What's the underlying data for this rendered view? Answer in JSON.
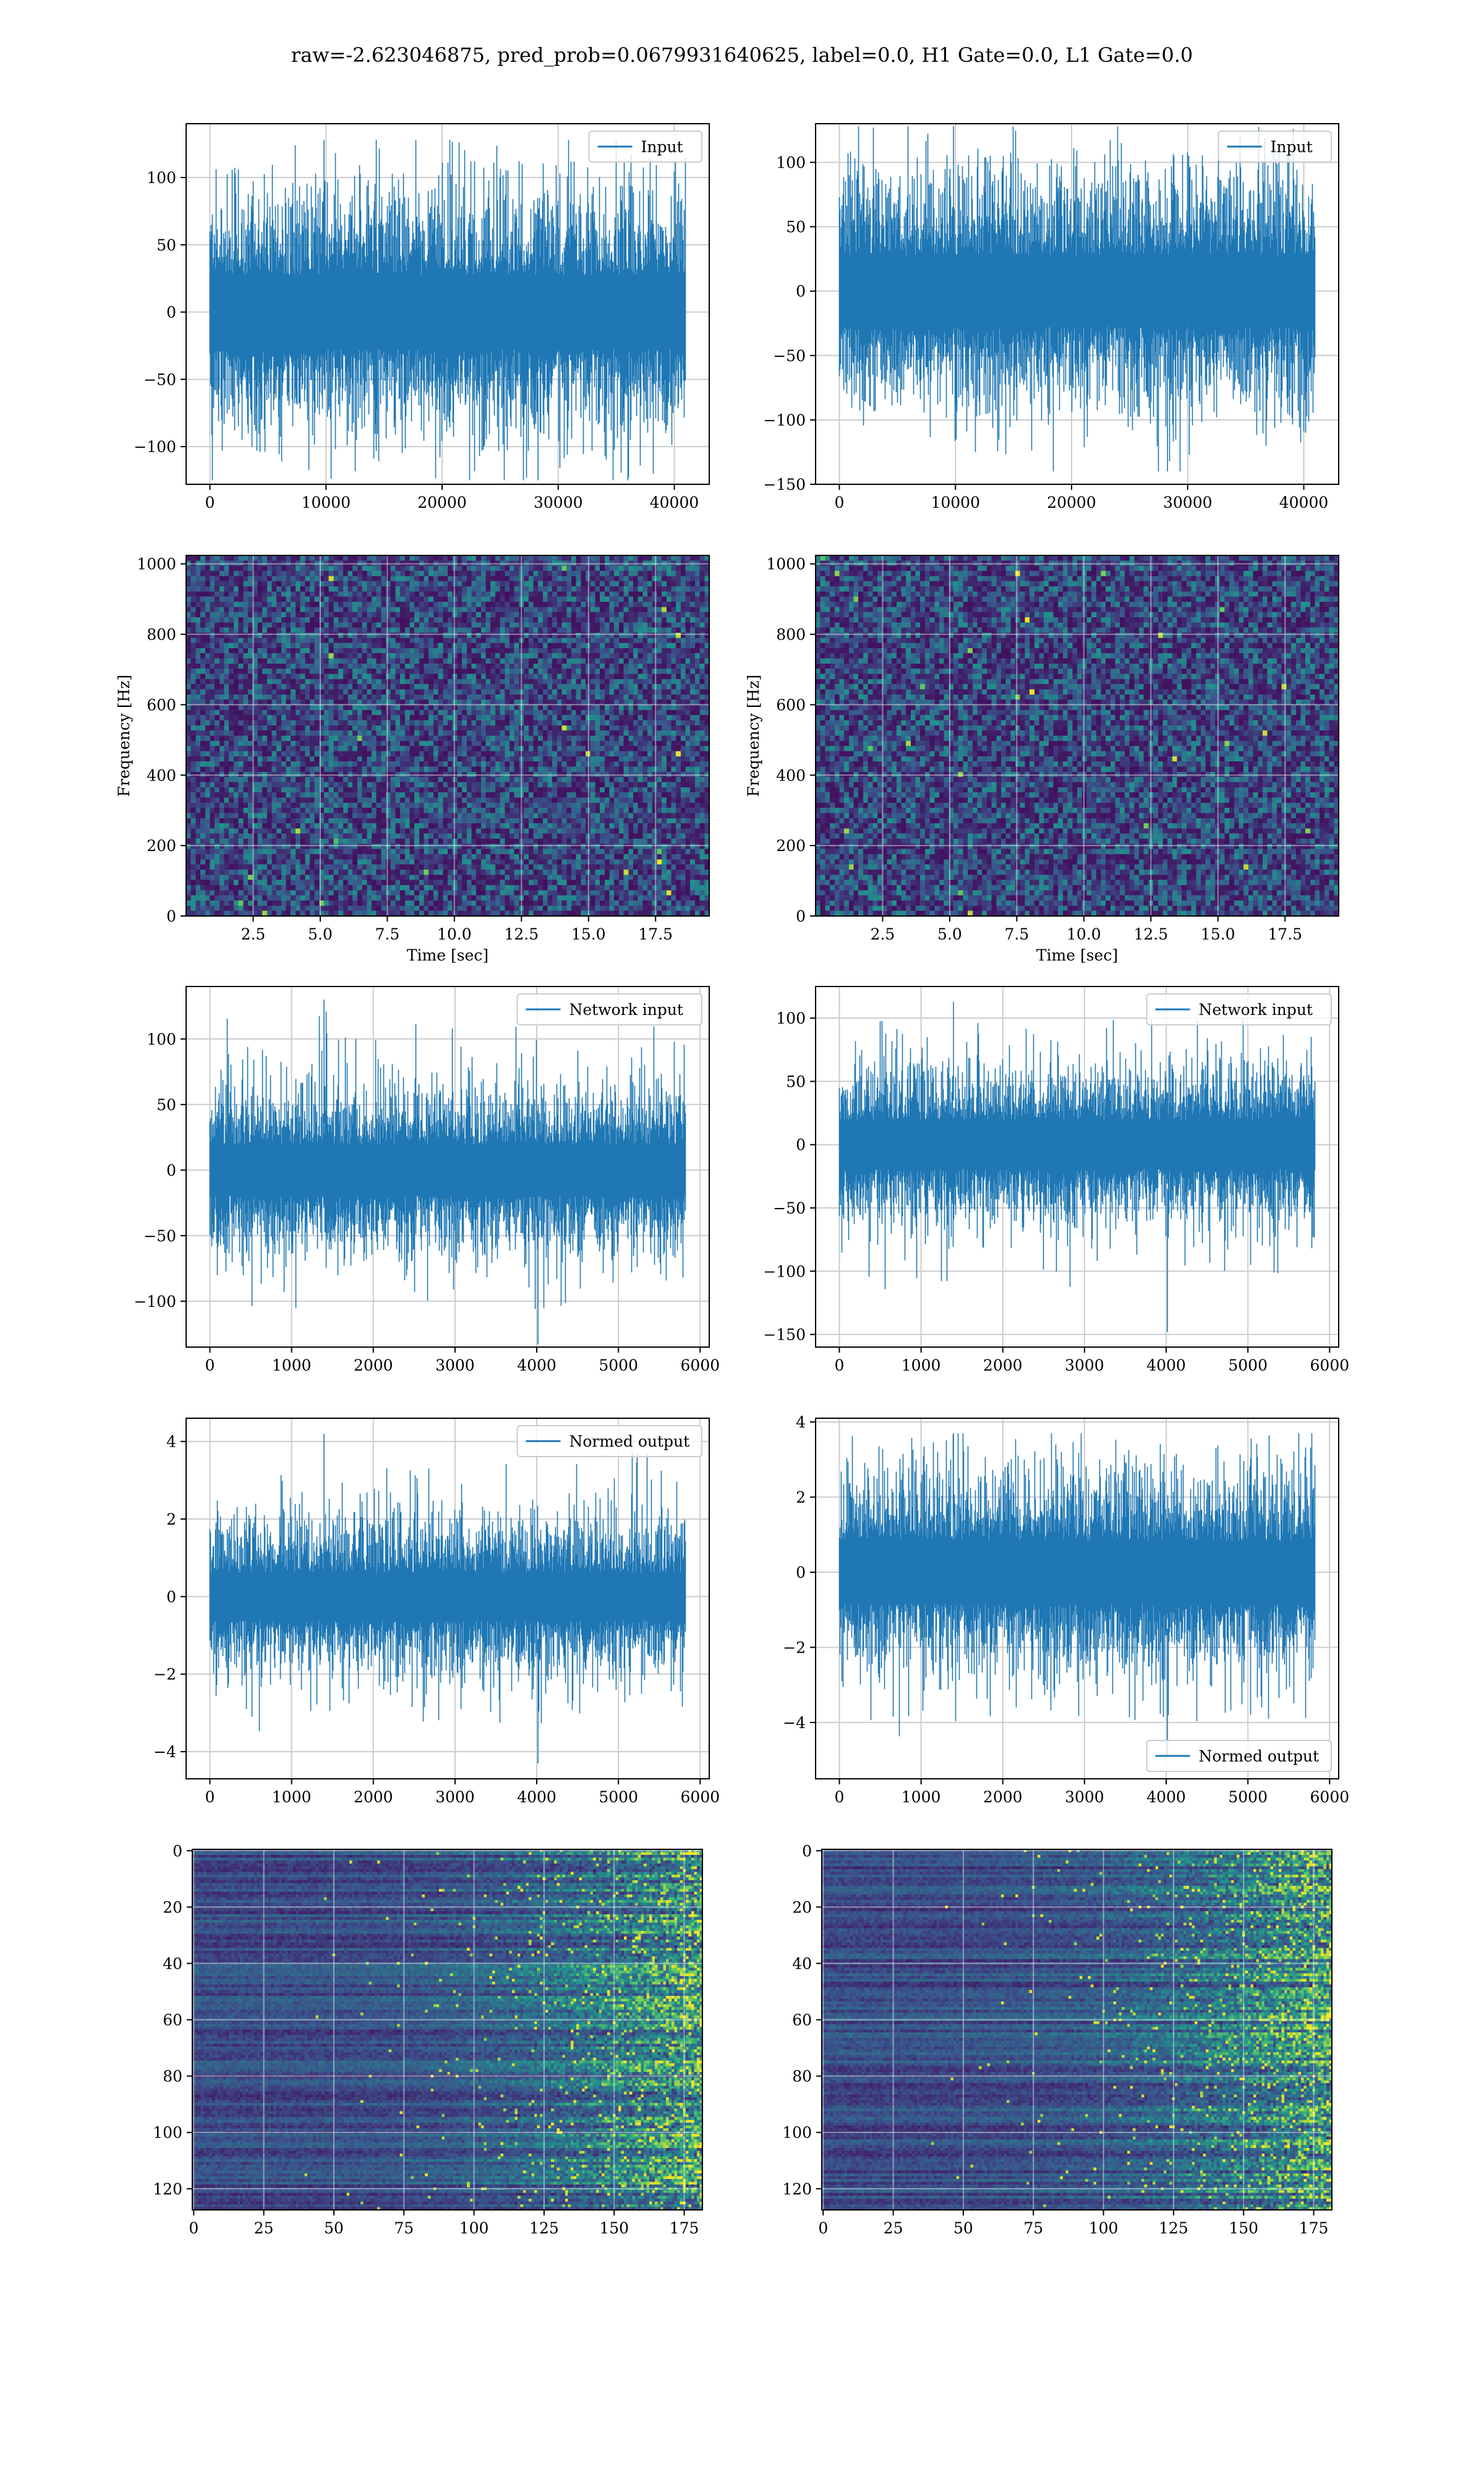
{
  "figure": {
    "title": "raw=-2.623046875, pred_prob=0.0679931640625, label=0.0, H1 Gate=0.0, L1 Gate=0.0"
  },
  "colors": {
    "line": "#1f77b4",
    "grid": "#cccccc",
    "viridis": [
      "#440154",
      "#3b528b",
      "#21918c",
      "#5ec962",
      "#fde725"
    ]
  },
  "chart_data": [
    {
      "id": "input_h1",
      "type": "line",
      "legend": "Input",
      "legend_loc": "upper right",
      "grid": true,
      "x_range": [
        0,
        40960
      ],
      "xlim": [
        -2048,
        43008
      ],
      "ylim": [
        -128,
        140
      ],
      "xticks": [
        0,
        10000,
        20000,
        30000,
        40000
      ],
      "yticks": [
        -100,
        -50,
        0,
        50,
        100
      ],
      "core_amplitude": 50,
      "peak_amplitude": 128,
      "min_value": -125,
      "series": [
        {
          "name": "Input",
          "x": [
            0,
            40960
          ],
          "y_min": -125,
          "y_max": 128
        }
      ]
    },
    {
      "id": "input_l1",
      "type": "line",
      "legend": "Input",
      "legend_loc": "upper right",
      "grid": true,
      "x_range": [
        0,
        40960
      ],
      "xlim": [
        -2048,
        43008
      ],
      "ylim": [
        -150,
        130
      ],
      "xticks": [
        0,
        10000,
        20000,
        30000,
        40000
      ],
      "yticks": [
        -150,
        -100,
        -50,
        0,
        50,
        100
      ],
      "core_amplitude": 50,
      "peak_amplitude": 128,
      "min_value": -140,
      "series": [
        {
          "name": "Input",
          "x": [
            0,
            40960
          ],
          "y_min": -140,
          "y_max": 128
        }
      ]
    },
    {
      "id": "spectrogram_h1",
      "type": "heatmap",
      "xlabel": "Time [sec]",
      "ylabel": "Frequency [Hz]",
      "grid": true,
      "xlim": [
        0,
        19.5
      ],
      "ylim": [
        0,
        1024
      ],
      "xticks": [
        2.5,
        5.0,
        7.5,
        10.0,
        12.5,
        15.0,
        17.5
      ],
      "xtick_labels": [
        "2.5",
        "5.0",
        "7.5",
        "10.0",
        "12.5",
        "15.0",
        "17.5"
      ],
      "yticks": [
        0,
        200,
        400,
        600,
        800,
        1000
      ],
      "colormap": "viridis"
    },
    {
      "id": "spectrogram_l1",
      "type": "heatmap",
      "xlabel": "Time [sec]",
      "ylabel": "Frequency [Hz]",
      "grid": true,
      "xlim": [
        0,
        19.5
      ],
      "ylim": [
        0,
        1024
      ],
      "xticks": [
        2.5,
        5.0,
        7.5,
        10.0,
        12.5,
        15.0,
        17.5
      ],
      "xtick_labels": [
        "2.5",
        "5.0",
        "7.5",
        "10.0",
        "12.5",
        "15.0",
        "17.5"
      ],
      "yticks": [
        0,
        200,
        400,
        600,
        800,
        1000
      ],
      "colormap": "viridis"
    },
    {
      "id": "network_input_h1",
      "type": "line",
      "legend": "Network input",
      "legend_loc": "upper right",
      "grid": true,
      "x_range": [
        0,
        5820
      ],
      "xlim": [
        -291,
        6111
      ],
      "ylim": [
        -135,
        140
      ],
      "xticks": [
        0,
        1000,
        2000,
        3000,
        4000,
        5000,
        6000
      ],
      "yticks": [
        -100,
        -50,
        0,
        50,
        100
      ],
      "core_amplitude": 35,
      "peak_amplitude": 130,
      "min_value": -133,
      "series": [
        {
          "name": "Network input",
          "x": [
            0,
            5820
          ],
          "y_min": -133,
          "y_max": 130
        }
      ]
    },
    {
      "id": "network_input_l1",
      "type": "line",
      "legend": "Network input",
      "legend_loc": "upper right",
      "grid": true,
      "x_range": [
        0,
        5820
      ],
      "xlim": [
        -291,
        6111
      ],
      "ylim": [
        -160,
        125
      ],
      "xticks": [
        0,
        1000,
        2000,
        3000,
        4000,
        5000,
        6000
      ],
      "yticks": [
        -150,
        -100,
        -50,
        0,
        50,
        100
      ],
      "core_amplitude": 35,
      "peak_amplitude": 113,
      "min_value": -148,
      "series": [
        {
          "name": "Network input",
          "x": [
            0,
            5820
          ],
          "y_min": -148,
          "y_max": 113
        }
      ]
    },
    {
      "id": "normed_output_h1",
      "type": "line",
      "legend": "Normed output",
      "legend_loc": "upper right",
      "grid": true,
      "x_range": [
        0,
        5820
      ],
      "xlim": [
        -291,
        6111
      ],
      "ylim": [
        -4.7,
        4.6
      ],
      "xticks": [
        0,
        1000,
        2000,
        3000,
        4000,
        5000,
        6000
      ],
      "yticks": [
        -4,
        -2,
        0,
        2,
        4
      ],
      "core_amplitude": 1.1,
      "peak_amplitude": 4.2,
      "min_value": -4.3,
      "series": [
        {
          "name": "Normed output",
          "x": [
            0,
            5820
          ],
          "y_min": -4.3,
          "y_max": 4.2
        }
      ]
    },
    {
      "id": "normed_output_l1",
      "type": "line",
      "legend": "Normed output",
      "legend_loc": "lower right",
      "grid": true,
      "x_range": [
        0,
        5820
      ],
      "xlim": [
        -291,
        6111
      ],
      "ylim": [
        -5.5,
        4.1
      ],
      "xticks": [
        0,
        1000,
        2000,
        3000,
        4000,
        5000,
        6000
      ],
      "yticks": [
        -4,
        -2,
        0,
        2,
        4
      ],
      "core_amplitude": 1.5,
      "peak_amplitude": 3.7,
      "min_value": -4.9,
      "series": [
        {
          "name": "Normed output",
          "x": [
            0,
            5820
          ],
          "y_min": -4.9,
          "y_max": 3.7
        }
      ]
    },
    {
      "id": "feature_map_h1",
      "type": "heatmap",
      "grid": true,
      "xlim": [
        -0.5,
        181.5
      ],
      "ylim": [
        127.5,
        -0.5
      ],
      "xticks": [
        0,
        25,
        50,
        75,
        100,
        125,
        150,
        175
      ],
      "yticks": [
        0,
        20,
        40,
        60,
        80,
        100,
        120
      ],
      "colormap": "viridis"
    },
    {
      "id": "feature_map_l1",
      "type": "heatmap",
      "grid": true,
      "xlim": [
        -0.5,
        181.5
      ],
      "ylim": [
        127.5,
        -0.5
      ],
      "xticks": [
        0,
        25,
        50,
        75,
        100,
        125,
        150,
        175
      ],
      "yticks": [
        0,
        20,
        40,
        60,
        80,
        100,
        120
      ],
      "colormap": "viridis"
    }
  ]
}
